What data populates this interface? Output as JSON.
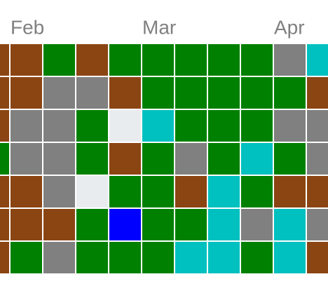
{
  "months": [
    {
      "label": "Feb",
      "column": 1
    },
    {
      "label": "Mar",
      "column": 5
    },
    {
      "label": "Apr",
      "column": 9
    }
  ],
  "cells": [
    [
      "#8b4513",
      "#8b4513",
      "#008000",
      "#8b4513",
      "#008000",
      "#008000",
      "#008000",
      "#008000",
      "#008000",
      "#808080",
      "#00c0c0"
    ],
    [
      "#8b4513",
      "#8b4513",
      "#808080",
      "#808080",
      "#8b4513",
      "#008000",
      "#008000",
      "#008000",
      "#008000",
      "#008000",
      "#8b4513"
    ],
    [
      "#8b4513",
      "#808080",
      "#808080",
      "#008000",
      "#e9ecef",
      "#00c0c0",
      "#008000",
      "#008000",
      "#008000",
      "#808080",
      "#808080"
    ],
    [
      "#008000",
      "#808080",
      "#808080",
      "#008000",
      "#8b4513",
      "#008000",
      "#808080",
      "#008000",
      "#00c0c0",
      "#008000",
      "#808080"
    ],
    [
      "#8b4513",
      "#8b4513",
      "#808080",
      "#e9ecef",
      "#008000",
      "#008000",
      "#8b4513",
      "#00c0c0",
      "#008000",
      "#8b4513",
      "#8b4513"
    ],
    [
      "#8b4513",
      "#8b4513",
      "#8b4513",
      "#008000",
      "#0000ff",
      "#008000",
      "#008000",
      "#00c0c0",
      "#808080",
      "#00c0c0",
      "#808080"
    ],
    [
      "#8b4513",
      "#008000",
      "#808080",
      "#008000",
      "#008000",
      "#008000",
      "#00c0c0",
      "#00c0c0",
      "#008000",
      "#00c0c0",
      "#8b4513"
    ]
  ]
}
